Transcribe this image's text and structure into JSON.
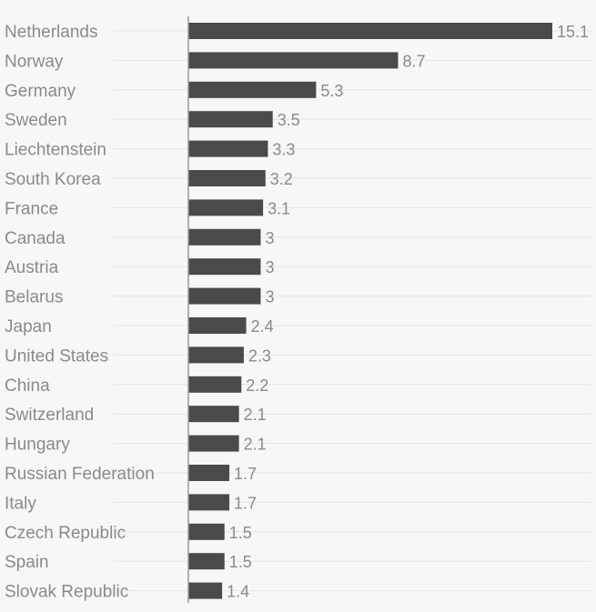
{
  "chart_data": {
    "type": "bar",
    "orientation": "horizontal",
    "title": "",
    "xlabel": "",
    "ylabel": "",
    "categories": [
      "Netherlands",
      "Norway",
      "Germany",
      "Sweden",
      "Liechtenstein",
      "South Korea",
      "France",
      "Canada",
      "Austria",
      "Belarus",
      "Japan",
      "United States",
      "China",
      "Switzerland",
      "Hungary",
      "Russian Federation",
      "Italy",
      "Czech Republic",
      "Spain",
      "Slovak Republic"
    ],
    "values": [
      15.1,
      8.7,
      5.3,
      3.5,
      3.3,
      3.2,
      3.1,
      3,
      3,
      3,
      2.4,
      2.3,
      2.2,
      2.1,
      2.1,
      1.7,
      1.7,
      1.5,
      1.5,
      1.4
    ],
    "value_labels": [
      "15.1",
      "8.7",
      "5.3",
      "3.5",
      "3.3",
      "3.2",
      "3.1",
      "3",
      "3",
      "3",
      "2.4",
      "2.3",
      "2.2",
      "2.1",
      "2.1",
      "1.7",
      "1.7",
      "1.5",
      "1.5",
      "1.4"
    ],
    "xlim": [
      0,
      15.1
    ],
    "grid": true,
    "legend": "none",
    "colors": {
      "bar": "#4a4a4a",
      "label": "#8a8a8a",
      "gridline": "#e6e6e6",
      "axis": "#999999",
      "background": "#f7f7f7"
    }
  }
}
